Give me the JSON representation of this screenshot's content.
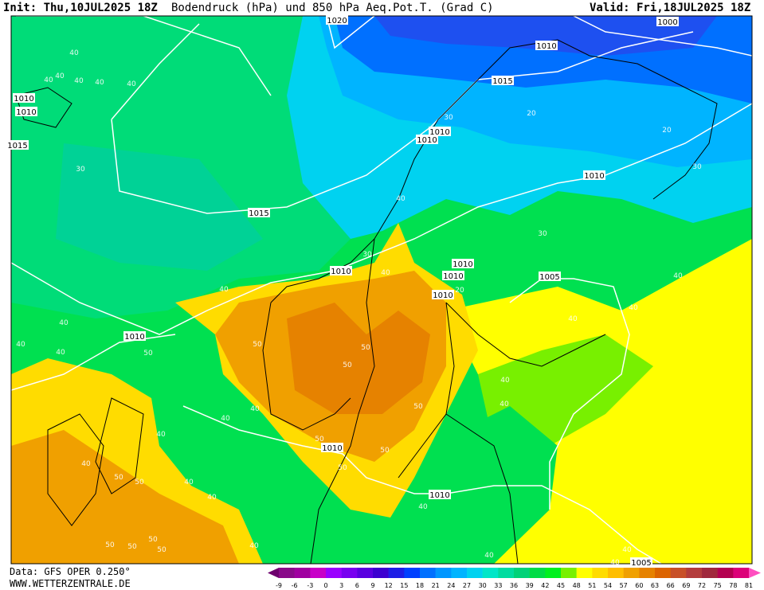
{
  "header": {
    "init": "Init: Thu,10JUL2025 18Z",
    "title": "Bodendruck (hPa) und 850 hPa Aeq.Pot.T. (Grad C)",
    "valid": "Valid: Fri,18JUL2025 18Z"
  },
  "map": {
    "isobar_labels": [
      1020,
      1000,
      1010,
      1015,
      1010,
      1010,
      1015,
      1010,
      1010,
      1015,
      1010,
      1010,
      1010,
      1010,
      1005,
      1010,
      1010,
      1010,
      1010,
      1005
    ],
    "theta_e_labels": [
      40,
      40,
      40,
      40,
      40,
      40,
      30,
      20,
      20,
      30,
      30,
      40,
      30,
      30,
      40,
      20,
      40,
      40,
      40,
      40,
      40,
      40,
      40,
      50,
      50,
      50,
      50,
      40,
      40,
      50,
      40,
      40,
      40,
      50,
      50,
      40,
      50,
      50,
      50,
      40,
      40,
      40,
      50,
      50,
      50,
      50,
      40,
      40,
      40,
      40
    ]
  },
  "footer": {
    "data": "Data: GFS OPER 0.250°",
    "site": "WWW.WETTERZENTRALE.DE"
  },
  "legend": {
    "labels": [
      -9,
      -6,
      -3,
      0,
      3,
      6,
      9,
      12,
      15,
      18,
      21,
      24,
      27,
      30,
      33,
      36,
      39,
      42,
      45,
      48,
      51,
      54,
      57,
      60,
      63,
      66,
      69,
      72,
      75,
      78,
      81
    ],
    "colors": [
      "#8a0a8a",
      "#a000a0",
      "#c800c8",
      "#9a00ff",
      "#7800f0",
      "#5a00e0",
      "#3c00d0",
      "#1e1ee6",
      "#0040ff",
      "#0070ff",
      "#0096ff",
      "#00b4ff",
      "#00d2f0",
      "#00e6c8",
      "#00dca0",
      "#00d278",
      "#00dc46",
      "#00f01e",
      "#78f000",
      "#ffff00",
      "#ffdc00",
      "#ffbe00",
      "#f0a000",
      "#e68200",
      "#dc6400",
      "#c85028",
      "#b43c3c",
      "#a0283c",
      "#b40050",
      "#dc0078"
    ],
    "arrow_colors": [
      "#6e006e",
      "#ff4ec0"
    ]
  }
}
